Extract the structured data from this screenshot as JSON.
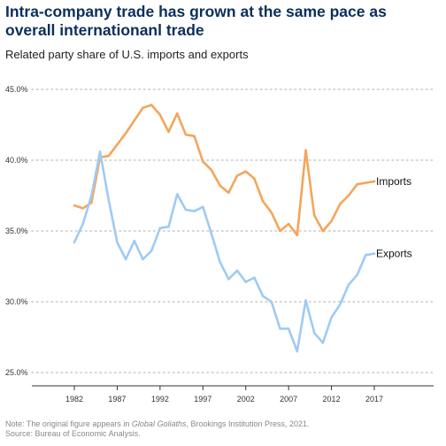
{
  "title": "Intra-company trade has grown at the same pace as overall internationanl trade",
  "subtitle": "Related party share of U.S. imports and exports",
  "note": {
    "prefix": "Note: The original figure appears in ",
    "book": "Global Goliaths",
    "suffix": ", Brookings Institution Press, 2021.",
    "source": "Source: Bureau of Economic Analysis."
  },
  "chart_data": {
    "type": "line",
    "x": [
      1982,
      1983,
      1984,
      1985,
      1986,
      1987,
      1988,
      1989,
      1990,
      1991,
      1992,
      1993,
      1994,
      1995,
      1996,
      1997,
      1998,
      1999,
      2000,
      2001,
      2002,
      2003,
      2004,
      2005,
      2006,
      2007,
      2008,
      2009,
      2010,
      2011,
      2012,
      2013,
      2014,
      2015,
      2016,
      2017
    ],
    "series": [
      {
        "name": "Imports",
        "color": "#f5a55a",
        "values": [
          36.8,
          36.6,
          37.0,
          40.2,
          40.3,
          41.1,
          41.9,
          42.8,
          43.7,
          43.9,
          43.2,
          42.0,
          43.3,
          41.8,
          41.7,
          39.9,
          39.3,
          38.2,
          37.7,
          38.9,
          39.2,
          38.7,
          37.1,
          36.3,
          35.0,
          35.5,
          34.7,
          40.7,
          36.1,
          35.0,
          35.7,
          36.9,
          37.5,
          38.3,
          38.4,
          38.5
        ]
      },
      {
        "name": "Exports",
        "color": "#9ecbf5",
        "values": [
          34.2,
          35.5,
          37.5,
          40.6,
          37.2,
          34.2,
          33.0,
          34.3,
          33.0,
          33.6,
          35.2,
          35.3,
          37.6,
          36.5,
          36.4,
          36.7,
          34.8,
          32.8,
          31.6,
          32.2,
          31.4,
          31.7,
          30.4,
          30.0,
          28.1,
          28.1,
          26.5,
          30.1,
          27.8,
          27.1,
          28.9,
          29.8,
          31.2,
          31.9,
          33.3,
          33.4
        ]
      }
    ],
    "ylim": [
      25.0,
      45.0
    ],
    "y_ticks": [
      25.0,
      30.0,
      35.0,
      40.0,
      45.0
    ],
    "y_tick_labels": [
      "25.0%",
      "30.0%",
      "35.0%",
      "40.0%",
      "45.0%"
    ],
    "x_ticks": [
      1982,
      1987,
      1992,
      1997,
      2002,
      2007,
      2012,
      2017
    ],
    "x_tick_labels": [
      "1982",
      "1987",
      "1992",
      "1997",
      "2002",
      "2007",
      "2012",
      "2017"
    ],
    "xlabel": "",
    "ylabel": "",
    "grid": "horizontal dotted",
    "legend": "direct labels at line ends"
  }
}
